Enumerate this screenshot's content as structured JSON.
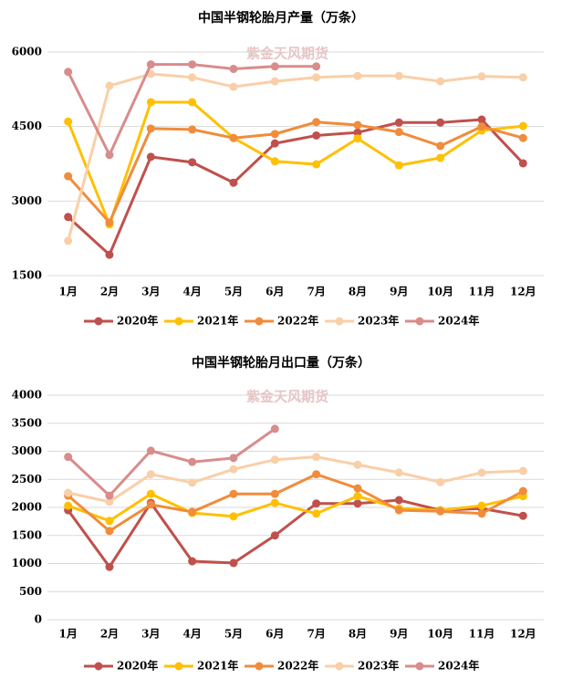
{
  "chart_data": [
    {
      "type": "line",
      "title": "中国半钢轮胎月产量（万条）",
      "watermark": "紫金天风期货",
      "categories": [
        "1月",
        "2月",
        "3月",
        "4月",
        "5月",
        "6月",
        "7月",
        "8月",
        "9月",
        "10月",
        "11月",
        "12月"
      ],
      "ylim": [
        1500,
        6000
      ],
      "yticks": [
        1500,
        3000,
        4500,
        6000
      ],
      "grid": true,
      "series": [
        {
          "name": "2020年",
          "color": "#c0504d",
          "values": [
            2680,
            1920,
            3890,
            3780,
            3370,
            4160,
            4320,
            4380,
            4580,
            4580,
            4640,
            3760
          ]
        },
        {
          "name": "2021年",
          "color": "#ffc000",
          "values": [
            4600,
            2530,
            4990,
            4990,
            4270,
            3800,
            3740,
            4260,
            3720,
            3870,
            4420,
            4510
          ]
        },
        {
          "name": "2022年",
          "color": "#f08c3c",
          "values": [
            3500,
            2570,
            4460,
            4440,
            4270,
            4350,
            4590,
            4530,
            4390,
            4110,
            4500,
            4270
          ]
        },
        {
          "name": "2023年",
          "color": "#f9cfa8",
          "values": [
            2200,
            5320,
            5560,
            5490,
            5300,
            5410,
            5490,
            5520,
            5520,
            5410,
            5510,
            5490
          ]
        },
        {
          "name": "2024年",
          "color": "#d98c8c",
          "values": [
            5600,
            3930,
            5750,
            5750,
            5660,
            5710,
            5710,
            null,
            null,
            null,
            null,
            null
          ]
        }
      ]
    },
    {
      "type": "line",
      "title": "中国半钢轮胎月出口量（万条）",
      "watermark": "紫金天风期货",
      "categories": [
        "1月",
        "2月",
        "3月",
        "4月",
        "5月",
        "6月",
        "7月",
        "8月",
        "9月",
        "10月",
        "11月",
        "12月"
      ],
      "ylim": [
        0,
        4000
      ],
      "yticks": [
        0,
        500,
        1000,
        1500,
        2000,
        2500,
        3000,
        3500,
        4000
      ],
      "grid": true,
      "series": [
        {
          "name": "2020年",
          "color": "#c0504d",
          "values": [
            1950,
            940,
            2080,
            1040,
            1010,
            1500,
            2070,
            2070,
            2130,
            1950,
            1980,
            1850
          ]
        },
        {
          "name": "2021年",
          "color": "#ffc000",
          "values": [
            2030,
            1760,
            2240,
            1900,
            1840,
            2080,
            1890,
            2200,
            1980,
            1950,
            2030,
            2200
          ]
        },
        {
          "name": "2022年",
          "color": "#f08c3c",
          "values": [
            2210,
            1580,
            2050,
            1920,
            2240,
            2240,
            2590,
            2340,
            1950,
            1930,
            1890,
            2290
          ]
        },
        {
          "name": "2023年",
          "color": "#f9cfa8",
          "values": [
            2260,
            2100,
            2590,
            2440,
            2680,
            2850,
            2900,
            2760,
            2620,
            2450,
            2620,
            2650
          ]
        },
        {
          "name": "2024年",
          "color": "#d98c8c",
          "values": [
            2900,
            2210,
            3010,
            2810,
            2880,
            3400,
            null,
            null,
            null,
            null,
            null,
            null
          ]
        }
      ]
    }
  ]
}
